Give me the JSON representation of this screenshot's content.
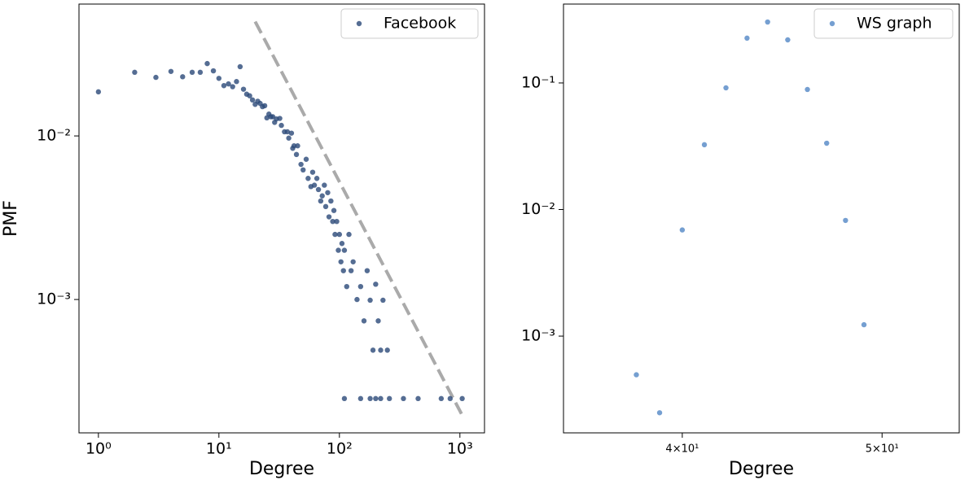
{
  "chart_data": [
    {
      "type": "scatter",
      "xlabel": "Degree",
      "ylabel": "PMF",
      "xscale": "log",
      "yscale": "log",
      "grid": false,
      "legend": "upper right",
      "xlim": [
        0.69,
        1600
      ],
      "ylim": [
        0.000153,
        0.064
      ],
      "xticks": [
        {
          "value": 1,
          "label": "10⁰"
        },
        {
          "value": 10,
          "label": "10¹"
        },
        {
          "value": 100,
          "label": "10²"
        },
        {
          "value": 1000,
          "label": "10³"
        }
      ],
      "yticks": [
        {
          "value": 0.01,
          "label": "10⁻²"
        },
        {
          "value": 0.001,
          "label": "10⁻³"
        }
      ],
      "x": [
        1,
        2,
        3,
        4,
        5,
        6,
        7,
        8,
        9,
        10,
        11,
        12,
        13,
        14,
        15,
        16,
        17,
        18,
        19,
        20,
        21,
        22,
        23,
        24,
        25,
        26,
        27,
        28,
        29,
        30,
        32,
        33,
        35,
        37,
        38,
        40,
        41,
        42,
        44,
        45,
        48,
        50,
        53,
        55,
        58,
        60,
        62,
        65,
        67,
        70,
        72,
        75,
        77,
        80,
        82,
        85,
        88,
        90,
        92,
        95,
        98,
        100,
        103,
        105,
        108,
        110,
        115,
        120,
        125,
        130,
        140,
        150,
        160,
        170,
        180,
        190,
        200,
        210,
        220,
        230,
        250,
        110,
        150,
        180,
        200,
        220,
        260,
        340,
        450,
        700,
        830,
        1045
      ],
      "series": [
        {
          "name": "Facebook",
          "color": "#2a4878",
          "values": [
            0.0186,
            0.0245,
            0.0228,
            0.0248,
            0.023,
            0.0245,
            0.0245,
            0.0277,
            0.025,
            0.0225,
            0.0203,
            0.0208,
            0.02,
            0.0215,
            0.0265,
            0.0193,
            0.018,
            0.0176,
            0.0166,
            0.0156,
            0.0163,
            0.0158,
            0.0151,
            0.0153,
            0.0129,
            0.0136,
            0.0131,
            0.0131,
            0.0121,
            0.0127,
            0.0128,
            0.0116,
            0.0106,
            0.0106,
            0.0097,
            0.0104,
            0.0084,
            0.0087,
            0.0077,
            0.0087,
            0.0067,
            0.0062,
            0.0072,
            0.0055,
            0.0049,
            0.006,
            0.005,
            0.0055,
            0.0047,
            0.004,
            0.0043,
            0.005,
            0.0037,
            0.0045,
            0.0032,
            0.004,
            0.003,
            0.0035,
            0.0025,
            0.003,
            0.002,
            0.0025,
            0.0017,
            0.0022,
            0.0015,
            0.002,
            0.0012,
            0.0025,
            0.0015,
            0.0017,
            0.001,
            0.0012,
            0.00074,
            0.0015,
            0.00099,
            0.00049,
            0.00124,
            0.00074,
            0.00049,
            0.00099,
            0.00049,
            0.000248,
            0.000248,
            0.000248,
            0.000248,
            0.000248,
            0.000248,
            0.000248,
            0.000248,
            0.000248,
            0.000248,
            0.000248
          ]
        }
      ],
      "reference_line": {
        "x": [
          20,
          1030
        ],
        "y": [
          0.05,
          0.0002
        ],
        "color": "#aaaaaa"
      }
    },
    {
      "type": "scatter",
      "xlabel": "Degree",
      "xscale": "log",
      "yscale": "log",
      "grid": false,
      "legend": "upper right",
      "xlim": [
        35.03,
        54.5
      ],
      "ylim": [
        0.000172,
        0.42
      ],
      "xticks": [
        {
          "value": 40,
          "label": "4×10¹"
        },
        {
          "value": 50,
          "label": "5×10¹"
        }
      ],
      "yticks": [
        {
          "value": 0.1,
          "label": "10⁻¹"
        },
        {
          "value": 0.01,
          "label": "10⁻²"
        },
        {
          "value": 0.001,
          "label": "10⁻³"
        }
      ],
      "x": [
        38,
        39,
        40,
        41,
        42,
        43,
        44,
        45,
        46,
        47,
        48,
        49
      ],
      "series": [
        {
          "name": "WS graph",
          "color": "#5287c6",
          "values": [
            0.000495,
            0.000248,
            0.0069,
            0.0325,
            0.0915,
            0.226,
            0.303,
            0.219,
            0.0888,
            0.0334,
            0.0082,
            0.00123
          ]
        }
      ]
    }
  ]
}
